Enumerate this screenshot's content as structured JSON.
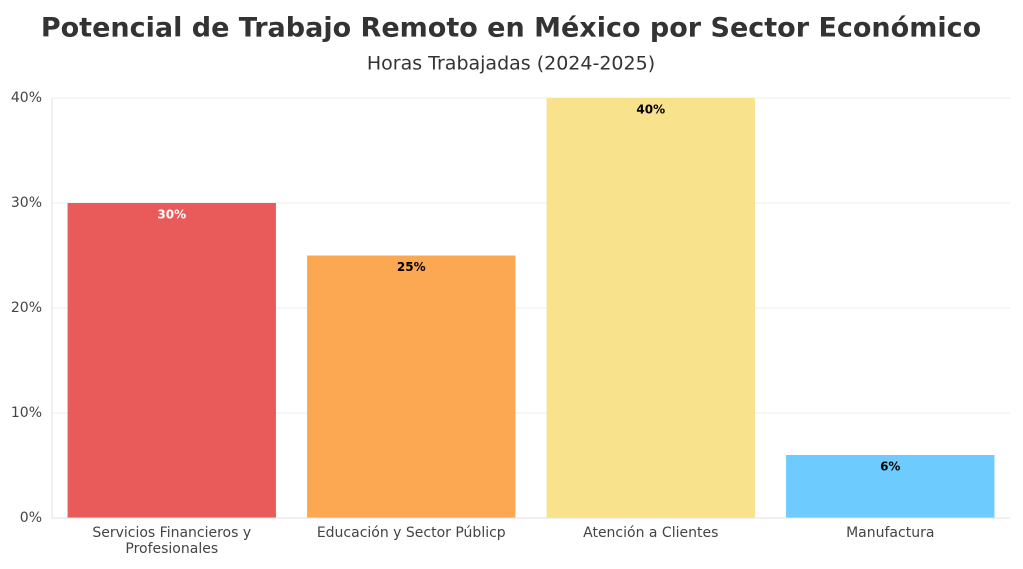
{
  "chart_data": {
    "type": "bar",
    "title": "Potencial de Trabajo Remoto en México por Sector Económico",
    "subtitle": "Horas Trabajadas (2024-2025)",
    "categories": [
      "Servicios Financieros y Profesionales",
      "Educación y Sector Públicp",
      "Atención a Clientes",
      "Manufactura"
    ],
    "values": [
      30,
      25,
      40,
      6
    ],
    "value_labels": [
      "30%",
      "25%",
      "40%",
      "6%"
    ],
    "colors": [
      "#e95b5b",
      "#fca853",
      "#f8e38c",
      "#6ecbfd"
    ],
    "value_label_colors": [
      "#ffffff",
      "#000000",
      "#000000",
      "#000000"
    ],
    "ylim": [
      0,
      40
    ],
    "yticks": [
      {
        "value": 0,
        "label": "0%"
      },
      {
        "value": 10,
        "label": "10%"
      },
      {
        "value": 20,
        "label": "20%"
      },
      {
        "value": 30,
        "label": "30%"
      },
      {
        "value": 40,
        "label": "40%"
      }
    ],
    "grid": true
  }
}
